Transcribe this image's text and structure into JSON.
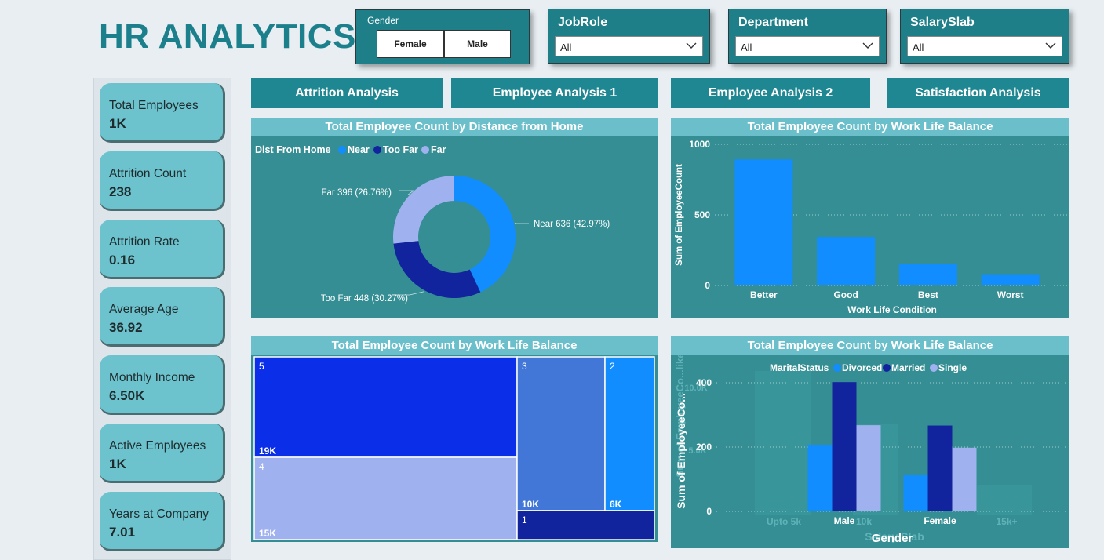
{
  "title": "HR ANALYTICS",
  "filters": {
    "gender": {
      "label": "Gender",
      "options": [
        "Female",
        "Male"
      ]
    },
    "jobrole": {
      "label": "JobRole",
      "value": "All"
    },
    "department": {
      "label": "Department",
      "value": "All"
    },
    "salaryslab": {
      "label": "SalarySlab",
      "value": "All"
    }
  },
  "kpis": [
    {
      "label": "Total Employees",
      "value": "1K"
    },
    {
      "label": "Attrition Count",
      "value": "238"
    },
    {
      "label": "Attrition Rate",
      "value": "0.16"
    },
    {
      "label": "Average Age",
      "value": "36.92"
    },
    {
      "label": "Monthly Income",
      "value": "6.50K"
    },
    {
      "label": "Active Employees",
      "value": "1K"
    },
    {
      "label": "Years at Company",
      "value": "7.01"
    }
  ],
  "nav": [
    "Attrition Analysis",
    "Employee Analysis 1",
    "Employee Analysis 2",
    "Satisfaction Analysis"
  ],
  "colors": {
    "teal_dark": "#1e8792",
    "panel_bg": "#358e93",
    "header": "#6bbfcb",
    "light_blue": "#118dff",
    "dark_blue": "#12239e",
    "lavender": "#a0b1ef"
  },
  "chart_data": [
    {
      "type": "pie",
      "title": "Total Employee Count by Distance from Home",
      "legend_title": "Dist From Home",
      "legend_position": "top-left",
      "slices": [
        {
          "name": "Near",
          "value": 636,
          "label": "Near 636 (42.97%)",
          "color": "#118dff"
        },
        {
          "name": "Too Far",
          "value": 448,
          "label": "Too Far 448 (30.27%)",
          "color": "#12239e"
        },
        {
          "name": "Far",
          "value": 396,
          "label": "Far 396 (26.76%)",
          "color": "#a0b1ef"
        }
      ]
    },
    {
      "type": "bar",
      "title": "Total Employee Count by Work Life Balance",
      "xlabel": "Work Life Condition",
      "ylabel": "Sum of EmployeeCount",
      "categories": [
        "Better",
        "Good",
        "Best",
        "Worst"
      ],
      "values": [
        893,
        344,
        153,
        80
      ],
      "ylim": [
        0,
        1000
      ],
      "yticks": [
        "0",
        "500",
        "1000"
      ],
      "grid": true
    },
    {
      "type": "treemap",
      "title": "Total Employee Count by Work Life Balance",
      "items": [
        {
          "name": "5",
          "value_label": "19K",
          "color": "#0b2fe8"
        },
        {
          "name": "4",
          "value_label": "15K",
          "color": "#a0b1ef"
        },
        {
          "name": "3",
          "value_label": "10K",
          "color": "#4277d8"
        },
        {
          "name": "2",
          "value_label": "6K",
          "color": "#118dff"
        },
        {
          "name": "1",
          "value_label": "",
          "color": "#12239e"
        }
      ]
    },
    {
      "type": "bar",
      "title": "Total Employee Count by Work Life Balance",
      "legend_title": "MaritalStatus",
      "legend_position": "top",
      "xlabel": "Gender",
      "ylabel": "Sum of EmployeeCo...",
      "categories": [
        "Male",
        "Female"
      ],
      "series": [
        {
          "name": "Divorced",
          "color": "#118dff",
          "values": [
            206,
            114
          ]
        },
        {
          "name": "Married",
          "color": "#12239e",
          "values": [
            402,
            267
          ]
        },
        {
          "name": "Single",
          "color": "#a0b1ef",
          "values": [
            268,
            198
          ]
        }
      ],
      "ylim": [
        0,
        450
      ],
      "yticks": [
        "0",
        "200",
        "400"
      ],
      "grid": true,
      "ghost_labels": [
        "10.0K",
        "5.0K",
        "Upto 5k",
        "10k",
        "15k+",
        "Salary Slab",
        "Sum of EmployeeCo...like"
      ]
    }
  ]
}
